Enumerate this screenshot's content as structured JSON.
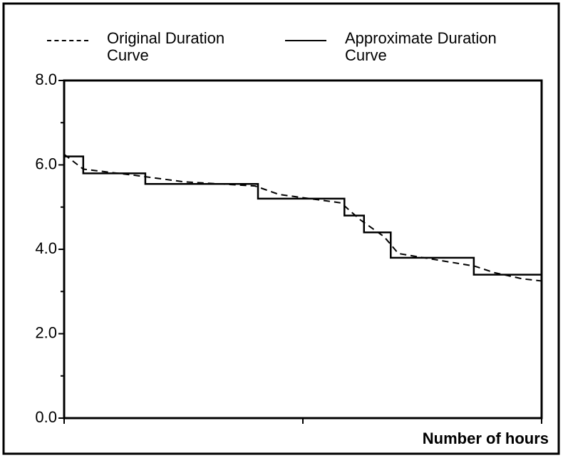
{
  "chart_data": {
    "type": "line",
    "x_label": "Number of hours",
    "xlim": [
      0,
      100
    ],
    "xticks": [
      0,
      50,
      100
    ],
    "ylim": [
      0,
      8
    ],
    "yticks": [
      {
        "value": 0,
        "label": "0.0"
      },
      {
        "value": 2,
        "label": "2.0"
      },
      {
        "value": 4,
        "label": "4.0"
      },
      {
        "value": 6,
        "label": "6.0"
      },
      {
        "value": 8,
        "label": "8.0"
      }
    ],
    "y_minor_ticks": [
      1,
      3,
      5,
      7
    ],
    "series": [
      {
        "name": "Original Duration Curve",
        "color": "#000000",
        "style": "dashed",
        "x": [
          0,
          4,
          15,
          25,
          40,
          45,
          58,
          62,
          67,
          70,
          78,
          86,
          90,
          96,
          100
        ],
        "values": [
          6.25,
          5.9,
          5.75,
          5.6,
          5.5,
          5.3,
          5.1,
          4.7,
          4.3,
          3.9,
          3.75,
          3.6,
          3.45,
          3.3,
          3.25
        ]
      },
      {
        "name": "Approximate Duration Curve",
        "color": "#000000",
        "style": "solid",
        "drawstyle": "steps-post",
        "x": [
          0,
          4,
          17,
          40.6,
          58.7,
          62.8,
          68.4,
          85.8
        ],
        "values": [
          6.2,
          5.8,
          5.55,
          5.2,
          4.8,
          4.4,
          3.8,
          3.4
        ]
      }
    ],
    "legend": "top"
  }
}
